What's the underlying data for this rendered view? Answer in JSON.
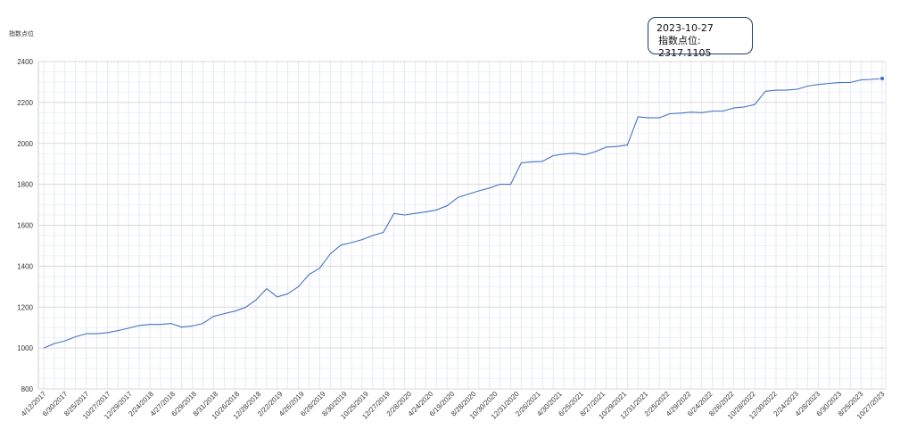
{
  "chart_data": {
    "type": "line",
    "ylabel": "指数点位",
    "ylim": [
      800,
      2400
    ],
    "yticks": [
      800,
      1000,
      1200,
      1400,
      1600,
      1800,
      2000,
      2200,
      2400
    ],
    "grid": true,
    "x_tick_labels": [
      "4/12/2017",
      "6/30/2017",
      "8/25/2017",
      "10/27/2017",
      "12/29/2017",
      "2/24/2018",
      "4/27/2018",
      "6/29/2018",
      "8/31/2018",
      "10/26/2018",
      "12/28/2018",
      "2/22/2019",
      "4/26/2019",
      "6/28/2019",
      "8/30/2019",
      "10/25/2019",
      "12/27/2019",
      "2/28/2020",
      "4/24/2020",
      "6/19/2020",
      "8/28/2020",
      "10/30/2020",
      "12/31/2020",
      "2/26/2021",
      "4/30/2021",
      "6/25/2021",
      "8/27/2021",
      "10/29/2021",
      "12/31/2021",
      "2/25/2022",
      "4/29/2022",
      "6/24/2022",
      "8/26/2022",
      "10/28/2022",
      "12/30/2022",
      "2/24/2023",
      "4/28/2023",
      "6/30/2023",
      "8/25/2023",
      "10/27/2023"
    ],
    "series": [
      {
        "color": "#4472c4",
        "values": [
          1000,
          1022,
          1035,
          1055,
          1070,
          1070,
          1075,
          1085,
          1097,
          1110,
          1115,
          1115,
          1120,
          1102,
          1108,
          1120,
          1155,
          1168,
          1180,
          1198,
          1235,
          1290,
          1250,
          1265,
          1300,
          1360,
          1390,
          1460,
          1503,
          1515,
          1530,
          1550,
          1565,
          1658,
          1650,
          1658,
          1665,
          1675,
          1695,
          1735,
          1752,
          1768,
          1782,
          1800,
          1800,
          1905,
          1910,
          1912,
          1940,
          1948,
          1952,
          1945,
          1960,
          1982,
          1985,
          1992,
          2130,
          2125,
          2125,
          2145,
          2148,
          2153,
          2150,
          2158,
          2158,
          2173,
          2178,
          2190,
          2255,
          2260,
          2260,
          2265,
          2280,
          2288,
          2293,
          2297,
          2298,
          2310,
          2313,
          2317
        ]
      }
    ],
    "marker": {
      "date": "2023-10-27",
      "value": 2317.1105
    }
  },
  "tooltip": {
    "date": "2023-10-27",
    "label_line": "指数点位: 2317.1105"
  },
  "colors": {
    "line": "#4472c4",
    "major_grid": "#d9d9d9",
    "minor_grid": "#eef1f8",
    "vgrid": "#dde4f2"
  }
}
